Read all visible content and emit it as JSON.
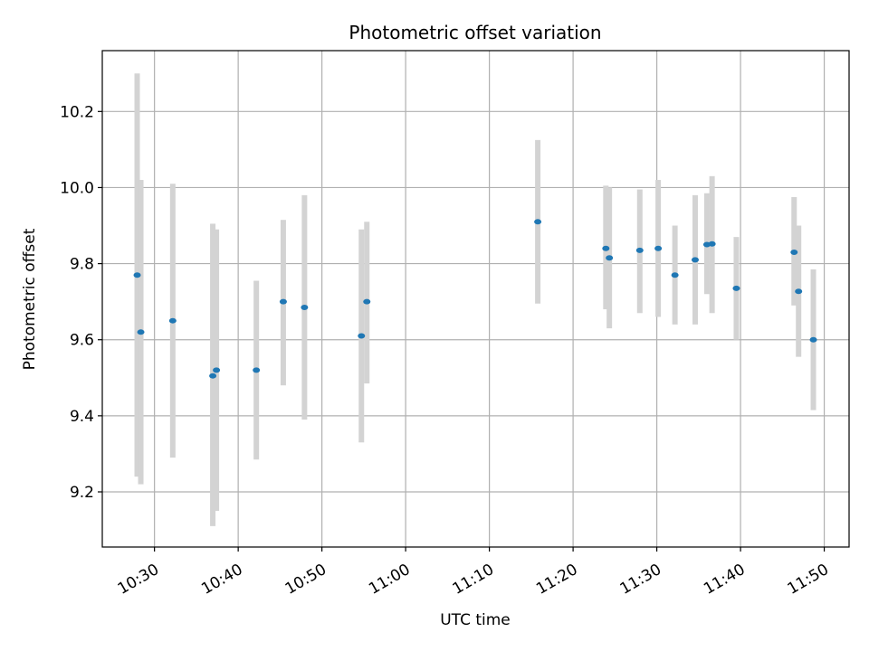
{
  "chart_data": {
    "type": "scatter",
    "title": "Photometric offset variation",
    "xlabel": "UTC time",
    "ylabel": "Photometric offset",
    "x_ticks": [
      "10:30",
      "10:40",
      "10:50",
      "11:00",
      "11:10",
      "11:20",
      "11:30",
      "11:40",
      "11:50"
    ],
    "y_ticks": [
      "9.2",
      "9.4",
      "9.6",
      "9.8",
      "10.0",
      "10.2"
    ],
    "xlim": [
      "10:23:46",
      "11:52:58"
    ],
    "ylim": [
      9.055,
      10.36
    ],
    "grid": true,
    "colors": {
      "point": "#1f77b4",
      "errorbar": "#d3d3d3",
      "grid": "#b0b0b0",
      "axes": "#000000"
    },
    "series": [
      {
        "points": [
          {
            "x": "10:27:56",
            "y": 9.77,
            "lo": 9.24,
            "hi": 10.3
          },
          {
            "x": "10:28:22",
            "y": 9.62,
            "lo": 9.22,
            "hi": 10.02
          },
          {
            "x": "10:32:11",
            "y": 9.65,
            "lo": 9.29,
            "hi": 10.01
          },
          {
            "x": "10:36:58",
            "y": 9.505,
            "lo": 9.11,
            "hi": 9.905
          },
          {
            "x": "10:37:24",
            "y": 9.52,
            "lo": 9.15,
            "hi": 9.89
          },
          {
            "x": "10:42:10",
            "y": 9.52,
            "lo": 9.285,
            "hi": 9.755
          },
          {
            "x": "10:45:23",
            "y": 9.7,
            "lo": 9.48,
            "hi": 9.915
          },
          {
            "x": "10:47:55",
            "y": 9.685,
            "lo": 9.39,
            "hi": 9.98
          },
          {
            "x": "10:54:43",
            "y": 9.61,
            "lo": 9.33,
            "hi": 9.89
          },
          {
            "x": "10:55:22",
            "y": 9.7,
            "lo": 9.485,
            "hi": 9.91
          },
          {
            "x": "11:15:47",
            "y": 9.91,
            "lo": 9.695,
            "hi": 10.125
          },
          {
            "x": "11:23:55",
            "y": 9.84,
            "lo": 9.68,
            "hi": 10.005
          },
          {
            "x": "11:24:20",
            "y": 9.815,
            "lo": 9.63,
            "hi": 10.0
          },
          {
            "x": "11:27:58",
            "y": 9.835,
            "lo": 9.67,
            "hi": 9.995
          },
          {
            "x": "11:30:10",
            "y": 9.84,
            "lo": 9.66,
            "hi": 10.02
          },
          {
            "x": "11:32:10",
            "y": 9.77,
            "lo": 9.64,
            "hi": 9.9
          },
          {
            "x": "11:34:35",
            "y": 9.81,
            "lo": 9.64,
            "hi": 9.98
          },
          {
            "x": "11:35:59",
            "y": 9.85,
            "lo": 9.72,
            "hi": 9.985
          },
          {
            "x": "11:36:36",
            "y": 9.852,
            "lo": 9.67,
            "hi": 10.03
          },
          {
            "x": "11:39:30",
            "y": 9.735,
            "lo": 9.6,
            "hi": 9.87
          },
          {
            "x": "11:46:24",
            "y": 9.83,
            "lo": 9.69,
            "hi": 9.975
          },
          {
            "x": "11:46:56",
            "y": 9.727,
            "lo": 9.555,
            "hi": 9.9
          },
          {
            "x": "11:48:42",
            "y": 9.6,
            "lo": 9.415,
            "hi": 9.785
          }
        ]
      }
    ]
  }
}
